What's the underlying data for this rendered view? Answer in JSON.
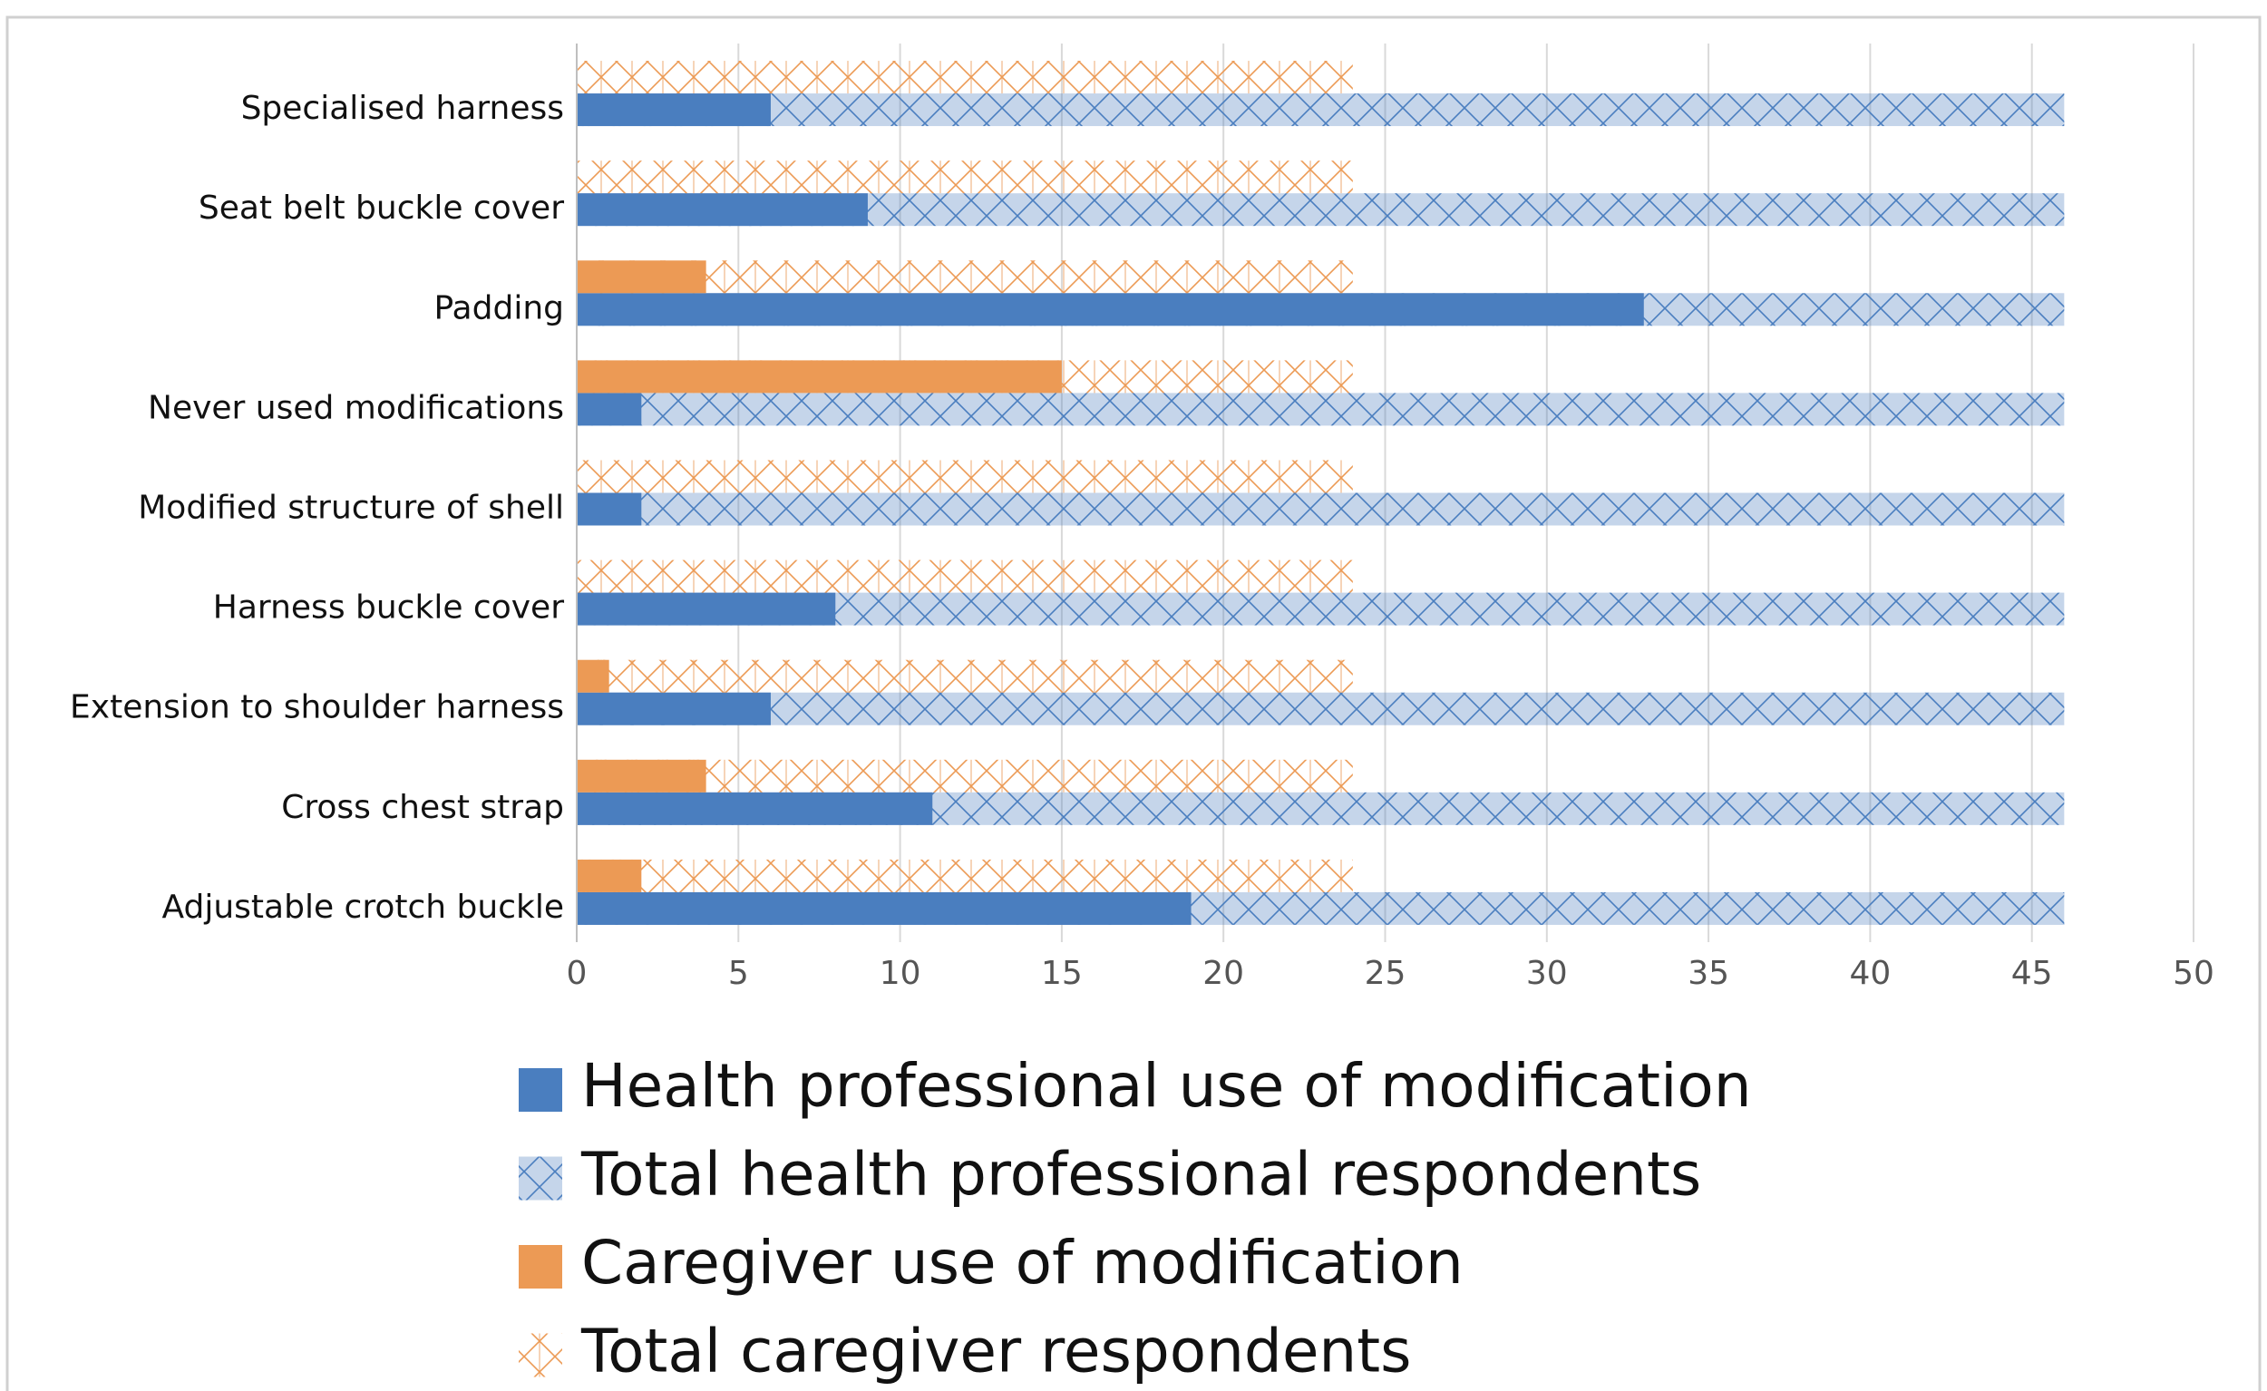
{
  "chart_data": {
    "type": "overlap-bar",
    "orientation": "horizontal",
    "categories": [
      "Specialised harness",
      "Seat belt buckle cover",
      "Padding",
      "Never used modifications",
      "Modified structure of shell",
      "Harness buckle cover",
      "Extension to shoulder harness",
      "Cross chest strap",
      "Adjustable crotch buckle"
    ],
    "series": [
      {
        "name": "Health professional use of modification",
        "color": "#4a7ebf",
        "values": [
          6,
          9,
          33,
          2,
          2,
          8,
          6,
          11,
          19
        ]
      },
      {
        "name": "Total health professional respondents",
        "color": "#4a7ebf",
        "pattern": "filled-cross",
        "values": [
          46,
          46,
          46,
          46,
          46,
          46,
          46,
          46,
          46
        ]
      },
      {
        "name": "Caregiver use of modification",
        "color": "#ec9a55",
        "values": [
          0,
          0,
          4,
          15,
          0,
          0,
          1,
          4,
          2
        ]
      },
      {
        "name": "Total caregiver respondents",
        "color": "#ec9a55",
        "pattern": "cross",
        "values": [
          24,
          24,
          24,
          24,
          24,
          24,
          24,
          24,
          24
        ]
      }
    ],
    "xlim": [
      0,
      50
    ],
    "xticks": [
      0,
      5,
      10,
      15,
      20,
      25,
      30,
      35,
      40,
      45,
      50
    ],
    "grid": true
  }
}
